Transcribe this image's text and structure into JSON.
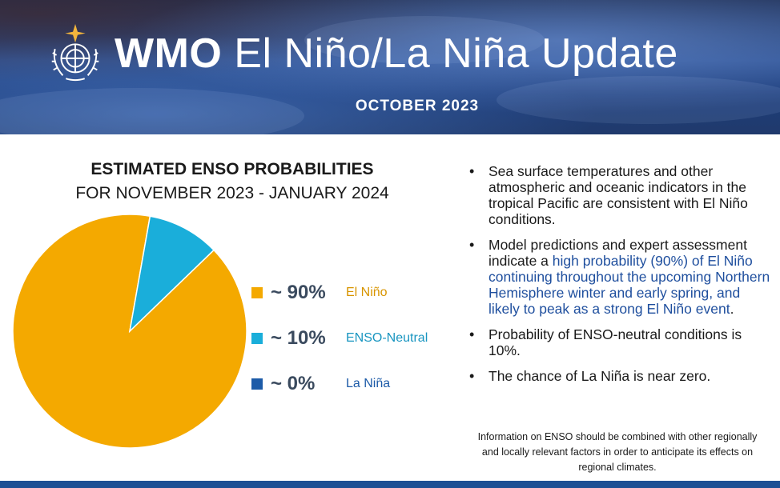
{
  "header": {
    "title_bold": "WMO",
    "title_rest": "El Niño/La Niña Update",
    "subtitle": "OCTOBER 2023"
  },
  "chart_data": {
    "type": "pie",
    "title": "ESTIMATED ENSO PROBABILITIES",
    "subtitle": "FOR NOVEMBER 2023 - JANUARY 2024",
    "slices": [
      {
        "label": "El Niño",
        "value": 90,
        "display": "~ 90%",
        "color": "#F4A900",
        "text_color": "#D89500"
      },
      {
        "label": "ENSO-Neutral",
        "value": 10,
        "display": "~ 10%",
        "color": "#1AAEDA",
        "text_color": "#1895C0"
      },
      {
        "label": "La Niña",
        "value": 0,
        "display": "~ 0%",
        "color": "#1D5BA8",
        "text_color": "#1D5BA8"
      }
    ]
  },
  "bullets": [
    {
      "text": "Sea surface temperatures and other atmospheric and oceanic indicators in the tropical Pacific are consistent with El Niño conditions."
    },
    {
      "pre": "Model predictions and expert assessment indicate a ",
      "highlight": "high probability (90%) of El Niño continuing throughout the upcoming Northern Hemisphere winter and early spring, and likely to peak as a strong El Niño event",
      "post": "."
    },
    {
      "text": "Probability of ENSO-neutral conditions is 10%."
    },
    {
      "text": "The chance of La Niña is near zero."
    }
  ],
  "note": "Information on ENSO should be combined with other regionally and locally relevant factors in order to anticipate its effects on regional climates.",
  "colors": {
    "banner": "#2d4f8f",
    "bottom_bar": "#1d4f94",
    "highlight": "#1f4f9e"
  }
}
